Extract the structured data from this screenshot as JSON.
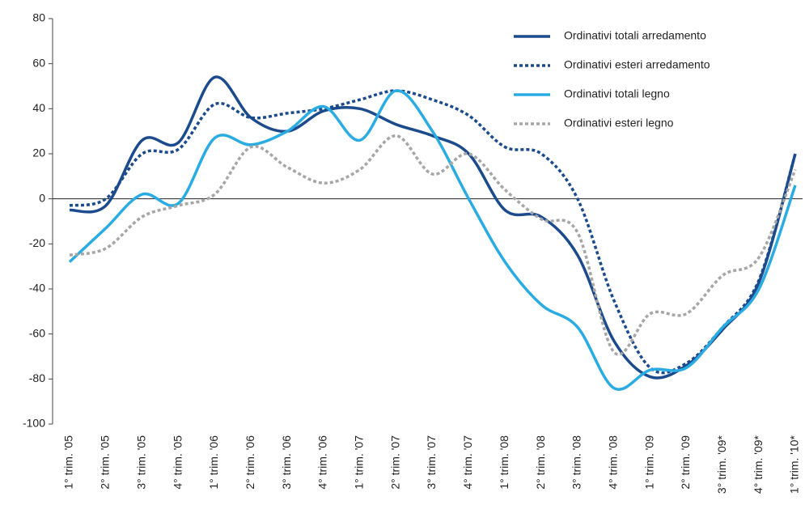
{
  "chart_data": {
    "type": "line",
    "categories": [
      "1° trim. '05",
      "2° trim. '05",
      "3° trim. '05",
      "4° trim. '05",
      "1° trim. '06",
      "2° trim. '06",
      "3° trim. '06",
      "4° trim. '06",
      "1° trim. '07",
      "2° trim. '07",
      "3° trim. '07",
      "4° trim. '07",
      "1° trim. '08",
      "2° trim. '08",
      "3° trim. '08",
      "4° trim. '08",
      "1° trim. '09",
      "2° trim. '09",
      "3° trim. '09*",
      "4° trim. '09*",
      "1° trim. '10*"
    ],
    "series": [
      {
        "name": "Ordinativi totali arredamento",
        "color": "#1b4b8c",
        "dashed": false,
        "values": [
          -5,
          -3,
          26,
          25,
          54,
          36,
          30,
          39,
          40,
          33,
          28,
          20,
          -5,
          -8,
          -25,
          -63,
          -79,
          -74,
          -58,
          -37,
          20
        ]
      },
      {
        "name": "Ordinativi esteri arredamento",
        "color": "#1b4b8c",
        "dashed": true,
        "values": [
          -3,
          0,
          20,
          22,
          42,
          36,
          38,
          40,
          44,
          48,
          44,
          37,
          23,
          20,
          0,
          -45,
          -75,
          -73,
          -57,
          -36,
          20
        ]
      },
      {
        "name": "Ordinativi totali legno",
        "color": "#2aace2",
        "dashed": false,
        "values": [
          -28,
          -13,
          2,
          -2,
          27,
          24,
          30,
          41,
          26,
          48,
          30,
          0,
          -28,
          -47,
          -57,
          -84,
          -76,
          -75,
          -57,
          -40,
          6
        ]
      },
      {
        "name": "Ordinativi esteri legno",
        "color": "#a6a6a6",
        "dashed": true,
        "values": [
          -25,
          -22,
          -8,
          -3,
          2,
          23,
          14,
          7,
          13,
          28,
          11,
          20,
          4,
          -9,
          -15,
          -68,
          -51,
          -51,
          -34,
          -26,
          13
        ]
      }
    ],
    "ylim": [
      -100,
      80
    ],
    "yticks": [
      -100,
      -80,
      -60,
      -40,
      -20,
      0,
      20,
      40,
      60,
      80
    ],
    "grid": false,
    "legend": "top-right"
  }
}
